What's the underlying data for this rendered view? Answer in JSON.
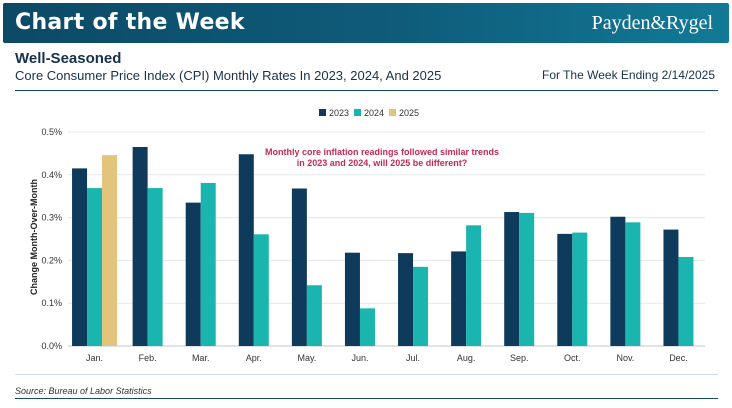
{
  "banner": {
    "title": "Chart of the Week",
    "brand": "Payden&Rygel"
  },
  "header": {
    "title": "Well-Seasoned",
    "subtitle": "Core Consumer Price Index (CPI) Monthly Rates In 2023, 2024, And 2025",
    "week": "For The Week Ending 2/14/2025"
  },
  "footer": {
    "source": "Source: Bureau of Labor Statistics"
  },
  "colors": {
    "2023": "#0e3a5b",
    "2024": "#1bb5b0",
    "2025": "#e3c47d",
    "annotation": "#c42a54",
    "banner": "#0e5c7a"
  },
  "chart_data": {
    "type": "bar",
    "title": "Core Consumer Price Index (CPI) Monthly Rates In 2023, 2024, And 2025",
    "xlabel": "",
    "ylabel": "Change Month-Over-Month",
    "ylim": [
      0,
      0.5
    ],
    "yticks": [
      "0.0%",
      "0.1%",
      "0.2%",
      "0.3%",
      "0.4%",
      "0.5%"
    ],
    "grid": true,
    "legend": "top-center",
    "categories": [
      "Jan.",
      "Feb.",
      "Mar.",
      "Apr.",
      "May.",
      "Jun.",
      "Jul.",
      "Aug.",
      "Sep.",
      "Oct.",
      "Nov.",
      "Dec."
    ],
    "series": [
      {
        "name": "2023",
        "values": [
          0.415,
          0.465,
          0.335,
          0.448,
          0.368,
          0.218,
          0.217,
          0.221,
          0.313,
          0.262,
          0.302,
          0.272
        ]
      },
      {
        "name": "2024",
        "values": [
          0.369,
          0.369,
          0.381,
          0.261,
          0.142,
          0.088,
          0.185,
          0.282,
          0.311,
          0.265,
          0.289,
          0.208
        ]
      },
      {
        "name": "2025",
        "values": [
          0.446,
          null,
          null,
          null,
          null,
          null,
          null,
          null,
          null,
          null,
          null,
          null
        ]
      }
    ],
    "annotation": "Monthly core inflation readings followed similar trends in 2023 and 2024, will 2025 be different?"
  }
}
